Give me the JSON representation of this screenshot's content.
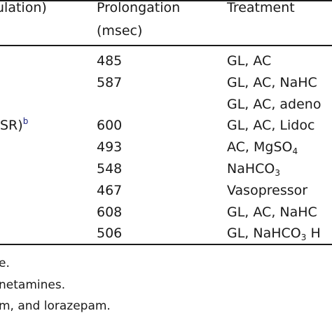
{
  "table": {
    "headers": {
      "col1": "ulation)",
      "col2_line1": "Prolongation",
      "col2_line2": "(msec)",
      "col3": "Treatment"
    },
    "rows": [
      {
        "c1": "",
        "c1_sup": "",
        "prolongation": "485",
        "treatment": "GL, AC",
        "treatment_sub": "",
        "treatment_after": ""
      },
      {
        "c1": "",
        "c1_sup": "",
        "prolongation": "587",
        "treatment": "GL, AC, NaHC",
        "treatment_sub": "",
        "treatment_after": ""
      },
      {
        "c1": "",
        "c1_sup": "",
        "prolongation": "",
        "treatment": "GL, AC, adeno",
        "treatment_sub": "",
        "treatment_after": ""
      },
      {
        "c1": "SR)",
        "c1_sup": "b",
        "prolongation": "600",
        "treatment": "GL, AC, Lidoc",
        "treatment_sub": "",
        "treatment_after": ""
      },
      {
        "c1": "",
        "c1_sup": "",
        "prolongation": "493",
        "treatment": "AC, MgSO",
        "treatment_sub": "4",
        "treatment_after": ""
      },
      {
        "c1": "",
        "c1_sup": "",
        "prolongation": "548",
        "treatment": "NaHCO",
        "treatment_sub": "3",
        "treatment_after": ""
      },
      {
        "c1": "",
        "c1_sup": "",
        "prolongation": "467",
        "treatment": "Vasopressor",
        "treatment_sub": "",
        "treatment_after": ""
      },
      {
        "c1": "",
        "c1_sup": "",
        "prolongation": "608",
        "treatment": "GL, AC, NaHC",
        "treatment_sub": "",
        "treatment_after": ""
      },
      {
        "c1": "",
        "c1_sup": "",
        "prolongation": "506",
        "treatment": "GL, NaHCO",
        "treatment_sub": "3",
        "treatment_after": " H"
      }
    ]
  },
  "footnotes": [
    "e.",
    "netamines.",
    "m, and lorazepam."
  ]
}
